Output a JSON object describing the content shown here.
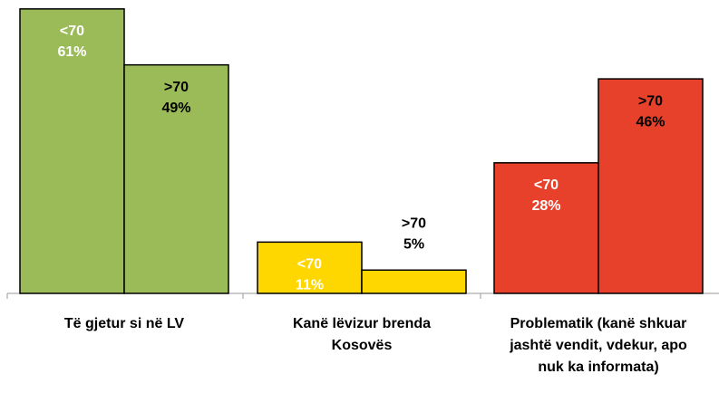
{
  "chart_data": {
    "type": "bar",
    "categories": [
      [
        "Të gjetur si në LV"
      ],
      [
        "Kanë lëvizur brenda",
        "Kosovës"
      ],
      [
        "Problematik (kanë shkuar",
        "jashtë vendit, vdekur, apo",
        "nuk ka informata)"
      ]
    ],
    "colors": [
      "#9bbb59",
      "#ffd700",
      "#e8412b"
    ],
    "series": [
      {
        "name": "<70",
        "values": [
          61,
          11,
          28
        ],
        "value_labels": [
          "61%",
          "11%",
          "28%"
        ]
      },
      {
        "name": ">70",
        "values": [
          49,
          5,
          46
        ],
        "value_labels": [
          "49%",
          "5%",
          "46%"
        ]
      }
    ]
  }
}
